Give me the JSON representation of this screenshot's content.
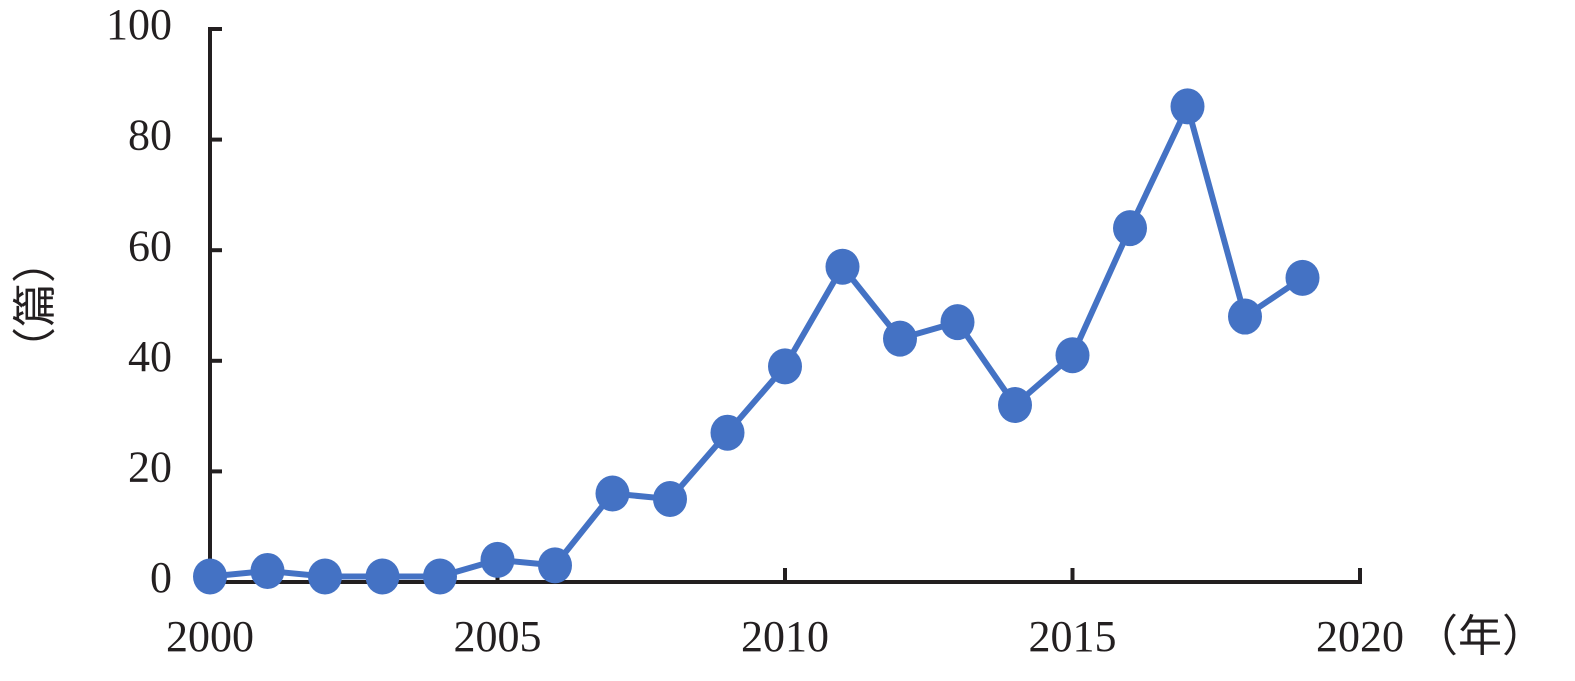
{
  "chart_data": {
    "type": "line",
    "x": [
      2000,
      2001,
      2002,
      2003,
      2004,
      2005,
      2006,
      2007,
      2008,
      2009,
      2010,
      2011,
      2012,
      2013,
      2014,
      2015,
      2016,
      2017,
      2018,
      2019
    ],
    "values": [
      1,
      2,
      1,
      1,
      1,
      4,
      3,
      16,
      15,
      27,
      39,
      57,
      44,
      47,
      32,
      41,
      64,
      86,
      48,
      55
    ],
    "color": "#4472c4",
    "x_label": "（年）",
    "y_label": "（篇）",
    "xlim": [
      2000,
      2020
    ],
    "xticks": [
      2000,
      2005,
      2010,
      2015,
      2020
    ],
    "ylim": [
      0,
      100
    ],
    "yticks": [
      0,
      20,
      40,
      60,
      80,
      100
    ]
  }
}
